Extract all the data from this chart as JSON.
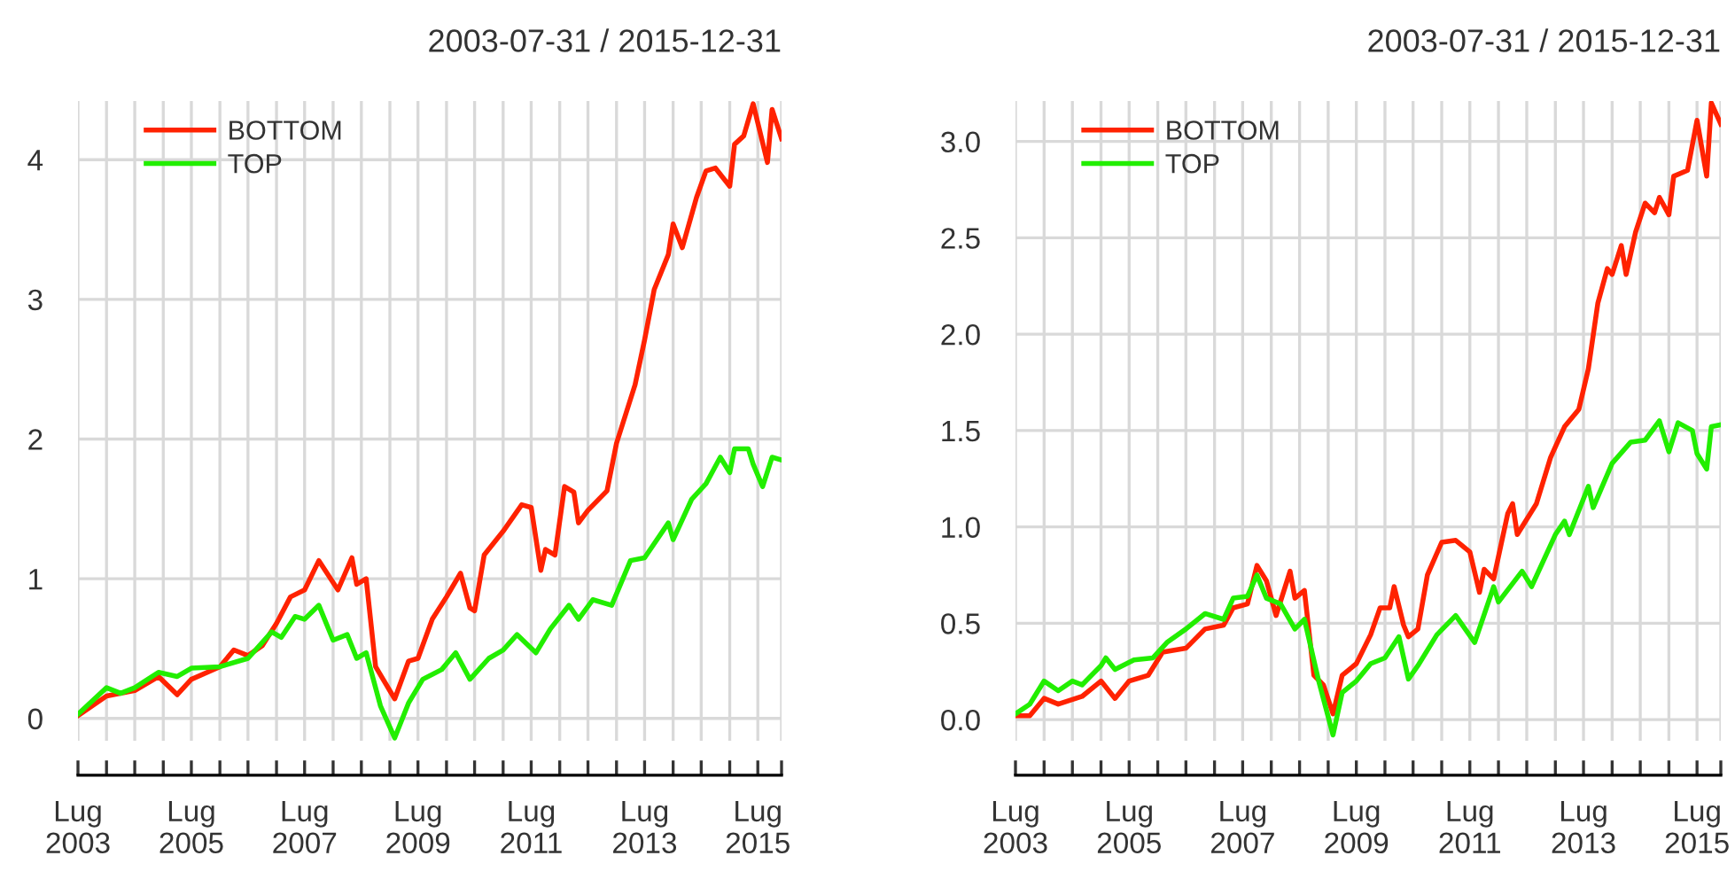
{
  "chart_data": [
    {
      "type": "line",
      "title": "2003-07-31 / 2015-12-31",
      "ylim": [
        -0.16,
        4.42
      ],
      "yticks": [
        0,
        1,
        2,
        3,
        4
      ],
      "xlim": [
        "2003-07",
        "2015-12"
      ],
      "xticks": [
        {
          "value": "2003-07",
          "label": "Lug\n2003"
        },
        {
          "value": "2004-01",
          "label": null
        },
        {
          "value": "2004-07",
          "label": null
        },
        {
          "value": "2005-01",
          "label": null
        },
        {
          "value": "2005-07",
          "label": "Lug\n2005"
        },
        {
          "value": "2006-01",
          "label": null
        },
        {
          "value": "2006-07",
          "label": null
        },
        {
          "value": "2007-01",
          "label": null
        },
        {
          "value": "2007-07",
          "label": "Lug\n2007"
        },
        {
          "value": "2008-01",
          "label": null
        },
        {
          "value": "2008-07",
          "label": null
        },
        {
          "value": "2009-01",
          "label": null
        },
        {
          "value": "2009-07",
          "label": "Lug\n2009"
        },
        {
          "value": "2010-01",
          "label": null
        },
        {
          "value": "2010-07",
          "label": null
        },
        {
          "value": "2011-01",
          "label": null
        },
        {
          "value": "2011-07",
          "label": "Lug\n2011"
        },
        {
          "value": "2012-01",
          "label": null
        },
        {
          "value": "2012-07",
          "label": null
        },
        {
          "value": "2013-01",
          "label": null
        },
        {
          "value": "2013-07",
          "label": "Lug\n2013"
        },
        {
          "value": "2014-01",
          "label": null
        },
        {
          "value": "2014-07",
          "label": null
        },
        {
          "value": "2015-01",
          "label": null
        },
        {
          "value": "2015-07",
          "label": "Lug\n2015"
        },
        {
          "value": "2015-12",
          "label": null
        }
      ],
      "grid": true,
      "legend": "top left",
      "series": [
        {
          "name": "BOTTOM",
          "color": "#ff2200",
          "x": [
            "2003-07",
            "2004-01",
            "2004-07",
            "2004-12",
            "2005-04",
            "2005-07",
            "2006-01",
            "2006-04",
            "2006-07",
            "2006-10",
            "2007-01",
            "2007-04",
            "2007-07",
            "2007-10",
            "2008-02",
            "2008-05",
            "2008-06",
            "2008-08",
            "2008-10",
            "2009-02",
            "2009-05",
            "2009-07",
            "2009-10",
            "2010-01",
            "2010-04",
            "2010-06",
            "2010-07",
            "2010-09",
            "2011-01",
            "2011-05",
            "2011-07",
            "2011-09",
            "2011-10",
            "2011-12",
            "2012-02",
            "2012-04",
            "2012-05",
            "2012-07",
            "2012-11",
            "2013-01",
            "2013-05",
            "2013-07",
            "2013-09",
            "2013-12",
            "2014-01",
            "2014-03",
            "2014-06",
            "2014-08",
            "2014-10",
            "2015-01",
            "2015-02",
            "2015-04",
            "2015-06",
            "2015-09",
            "2015-10",
            "2015-12"
          ],
          "values": [
            0.02,
            0.16,
            0.2,
            0.3,
            0.17,
            0.28,
            0.37,
            0.49,
            0.45,
            0.52,
            0.68,
            0.87,
            0.92,
            1.13,
            0.92,
            1.15,
            0.96,
            1.0,
            0.37,
            0.14,
            0.41,
            0.43,
            0.71,
            0.87,
            1.04,
            0.79,
            0.77,
            1.17,
            1.34,
            1.53,
            1.51,
            1.06,
            1.21,
            1.17,
            1.66,
            1.62,
            1.4,
            1.49,
            1.63,
            1.97,
            2.39,
            2.71,
            3.07,
            3.32,
            3.54,
            3.37,
            3.73,
            3.92,
            3.94,
            3.81,
            4.11,
            4.17,
            4.4,
            3.98,
            4.36,
            4.15
          ]
        },
        {
          "name": "TOP",
          "color": "#22ee00",
          "x": [
            "2003-07",
            "2004-01",
            "2004-04",
            "2004-07",
            "2004-12",
            "2005-04",
            "2005-07",
            "2006-01",
            "2006-07",
            "2006-12",
            "2007-02",
            "2007-05",
            "2007-07",
            "2007-10",
            "2008-01",
            "2008-04",
            "2008-06",
            "2008-08",
            "2008-11",
            "2009-02",
            "2009-05",
            "2009-08",
            "2009-12",
            "2010-03",
            "2010-06",
            "2010-10",
            "2011-01",
            "2011-04",
            "2011-08",
            "2011-11",
            "2012-03",
            "2012-05",
            "2012-08",
            "2012-12",
            "2013-04",
            "2013-07",
            "2013-12",
            "2014-01",
            "2014-05",
            "2014-08",
            "2014-11",
            "2015-01",
            "2015-02",
            "2015-05",
            "2015-06",
            "2015-08",
            "2015-10",
            "2015-12"
          ],
          "values": [
            0.03,
            0.22,
            0.18,
            0.22,
            0.33,
            0.3,
            0.36,
            0.37,
            0.43,
            0.62,
            0.58,
            0.73,
            0.71,
            0.81,
            0.56,
            0.6,
            0.43,
            0.47,
            0.09,
            -0.14,
            0.11,
            0.28,
            0.35,
            0.47,
            0.28,
            0.43,
            0.49,
            0.6,
            0.47,
            0.64,
            0.81,
            0.71,
            0.85,
            0.81,
            1.13,
            1.15,
            1.4,
            1.28,
            1.57,
            1.68,
            1.87,
            1.76,
            1.93,
            1.93,
            1.82,
            1.66,
            1.87,
            1.85
          ]
        }
      ]
    },
    {
      "type": "line",
      "title": "2003-07-31 / 2015-12-31",
      "ylim": [
        -0.11,
        3.21
      ],
      "yticks": [
        {
          "value": 0,
          "label": "0.0"
        },
        {
          "value": 0.5,
          "label": "0.5"
        },
        {
          "value": 1,
          "label": "1.0"
        },
        {
          "value": 1.5,
          "label": "1.5"
        },
        {
          "value": 2,
          "label": "2.0"
        },
        {
          "value": 2.5,
          "label": "2.5"
        },
        {
          "value": 3,
          "label": "3.0"
        }
      ],
      "xlim": [
        "2003-07",
        "2015-12"
      ],
      "xticks": [
        {
          "value": "2003-07",
          "label": "Lug\n2003"
        },
        {
          "value": "2004-01",
          "label": null
        },
        {
          "value": "2004-07",
          "label": null
        },
        {
          "value": "2005-01",
          "label": null
        },
        {
          "value": "2005-07",
          "label": "Lug\n2005"
        },
        {
          "value": "2006-01",
          "label": null
        },
        {
          "value": "2006-07",
          "label": null
        },
        {
          "value": "2007-01",
          "label": null
        },
        {
          "value": "2007-07",
          "label": "Lug\n2007"
        },
        {
          "value": "2008-01",
          "label": null
        },
        {
          "value": "2008-07",
          "label": null
        },
        {
          "value": "2009-01",
          "label": null
        },
        {
          "value": "2009-07",
          "label": "Lug\n2009"
        },
        {
          "value": "2010-01",
          "label": null
        },
        {
          "value": "2010-07",
          "label": null
        },
        {
          "value": "2011-01",
          "label": null
        },
        {
          "value": "2011-07",
          "label": "Lug\n2011"
        },
        {
          "value": "2012-01",
          "label": null
        },
        {
          "value": "2012-07",
          "label": null
        },
        {
          "value": "2013-01",
          "label": null
        },
        {
          "value": "2013-07",
          "label": "Lug\n2013"
        },
        {
          "value": "2014-01",
          "label": null
        },
        {
          "value": "2014-07",
          "label": null
        },
        {
          "value": "2015-01",
          "label": null
        },
        {
          "value": "2015-07",
          "label": "Lug\n2015"
        },
        {
          "value": "2015-12",
          "label": null
        }
      ],
      "grid": true,
      "legend": "top left",
      "series": [
        {
          "name": "BOTTOM",
          "color": "#ff2200",
          "x": [
            "2003-07",
            "2003-10",
            "2004-01",
            "2004-04",
            "2004-09",
            "2005-01",
            "2005-04",
            "2005-07",
            "2005-11",
            "2006-02",
            "2006-07",
            "2006-11",
            "2007-03",
            "2007-05",
            "2007-08",
            "2007-10",
            "2007-12",
            "2008-02",
            "2008-05",
            "2008-06",
            "2008-08",
            "2008-10",
            "2008-12",
            "2009-02",
            "2009-04",
            "2009-07",
            "2009-10",
            "2009-12",
            "2010-02",
            "2010-03",
            "2010-05",
            "2010-06",
            "2010-08",
            "2010-10",
            "2011-01",
            "2011-04",
            "2011-07",
            "2011-09",
            "2011-10",
            "2011-12",
            "2012-03",
            "2012-04",
            "2012-05",
            "2012-09",
            "2012-12",
            "2013-03",
            "2013-06",
            "2013-08",
            "2013-10",
            "2013-12",
            "2014-01",
            "2014-03",
            "2014-04",
            "2014-06",
            "2014-08",
            "2014-10",
            "2014-11",
            "2015-01",
            "2015-02",
            "2015-05",
            "2015-07",
            "2015-09",
            "2015-10",
            "2015-12"
          ],
          "values": [
            0.02,
            0.02,
            0.11,
            0.08,
            0.12,
            0.2,
            0.11,
            0.2,
            0.23,
            0.35,
            0.37,
            0.47,
            0.49,
            0.58,
            0.6,
            0.8,
            0.72,
            0.54,
            0.77,
            0.63,
            0.67,
            0.23,
            0.18,
            0.03,
            0.23,
            0.29,
            0.44,
            0.58,
            0.58,
            0.69,
            0.49,
            0.43,
            0.47,
            0.75,
            0.92,
            0.93,
            0.87,
            0.66,
            0.78,
            0.73,
            1.07,
            1.12,
            0.96,
            1.12,
            1.36,
            1.52,
            1.61,
            1.82,
            2.16,
            2.34,
            2.31,
            2.46,
            2.31,
            2.53,
            2.68,
            2.63,
            2.71,
            2.62,
            2.82,
            2.85,
            3.11,
            2.82,
            3.2,
            3.09
          ]
        },
        {
          "name": "TOP",
          "color": "#22ee00",
          "x": [
            "2003-07",
            "2003-10",
            "2004-01",
            "2004-04",
            "2004-07",
            "2004-09",
            "2005-01",
            "2005-02",
            "2005-04",
            "2005-08",
            "2005-12",
            "2006-03",
            "2006-07",
            "2006-11",
            "2007-03",
            "2007-05",
            "2007-08",
            "2007-10",
            "2007-12",
            "2008-03",
            "2008-06",
            "2008-08",
            "2008-11",
            "2009-02",
            "2009-04",
            "2009-07",
            "2009-10",
            "2010-01",
            "2010-04",
            "2010-06",
            "2010-08",
            "2010-12",
            "2011-04",
            "2011-08",
            "2011-12",
            "2012-01",
            "2012-06",
            "2012-08",
            "2013-01",
            "2013-03",
            "2013-04",
            "2013-08",
            "2013-09",
            "2014-01",
            "2014-05",
            "2014-08",
            "2014-11",
            "2015-01",
            "2015-03",
            "2015-06",
            "2015-07",
            "2015-09",
            "2015-10",
            "2015-12"
          ],
          "values": [
            0.03,
            0.08,
            0.2,
            0.15,
            0.2,
            0.18,
            0.28,
            0.32,
            0.26,
            0.31,
            0.32,
            0.4,
            0.47,
            0.55,
            0.52,
            0.63,
            0.64,
            0.75,
            0.63,
            0.6,
            0.47,
            0.52,
            0.2,
            -0.08,
            0.14,
            0.2,
            0.29,
            0.32,
            0.43,
            0.21,
            0.28,
            0.44,
            0.54,
            0.4,
            0.69,
            0.61,
            0.77,
            0.69,
            0.96,
            1.03,
            0.96,
            1.21,
            1.1,
            1.33,
            1.44,
            1.45,
            1.55,
            1.39,
            1.54,
            1.5,
            1.38,
            1.3,
            1.52,
            1.53
          ]
        }
      ]
    }
  ]
}
